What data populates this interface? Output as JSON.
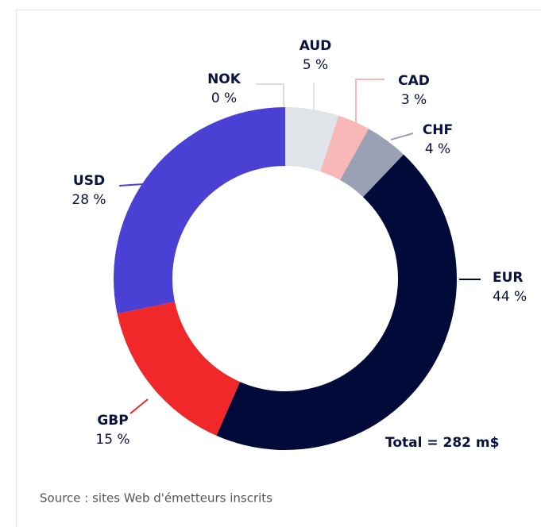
{
  "chart_data": {
    "type": "pie",
    "donut": true,
    "categories": [
      "AUD",
      "CAD",
      "CHF",
      "EUR",
      "GBP",
      "USD",
      "NOK"
    ],
    "values": [
      5,
      3,
      4,
      44,
      15,
      28,
      0
    ],
    "value_labels": [
      "5 %",
      "3 %",
      "4 %",
      "44 %",
      "15 %",
      "28 %",
      "0 %"
    ],
    "colors": [
      "#e0e3e8",
      "#f9b8b8",
      "#9ba1b5",
      "#020a3a",
      "#f0282a",
      "#4a40d4",
      "#d9dce2"
    ],
    "annotation": "Total = 282 m$",
    "source": "Source : sites Web d'émetteurs inscrits"
  }
}
